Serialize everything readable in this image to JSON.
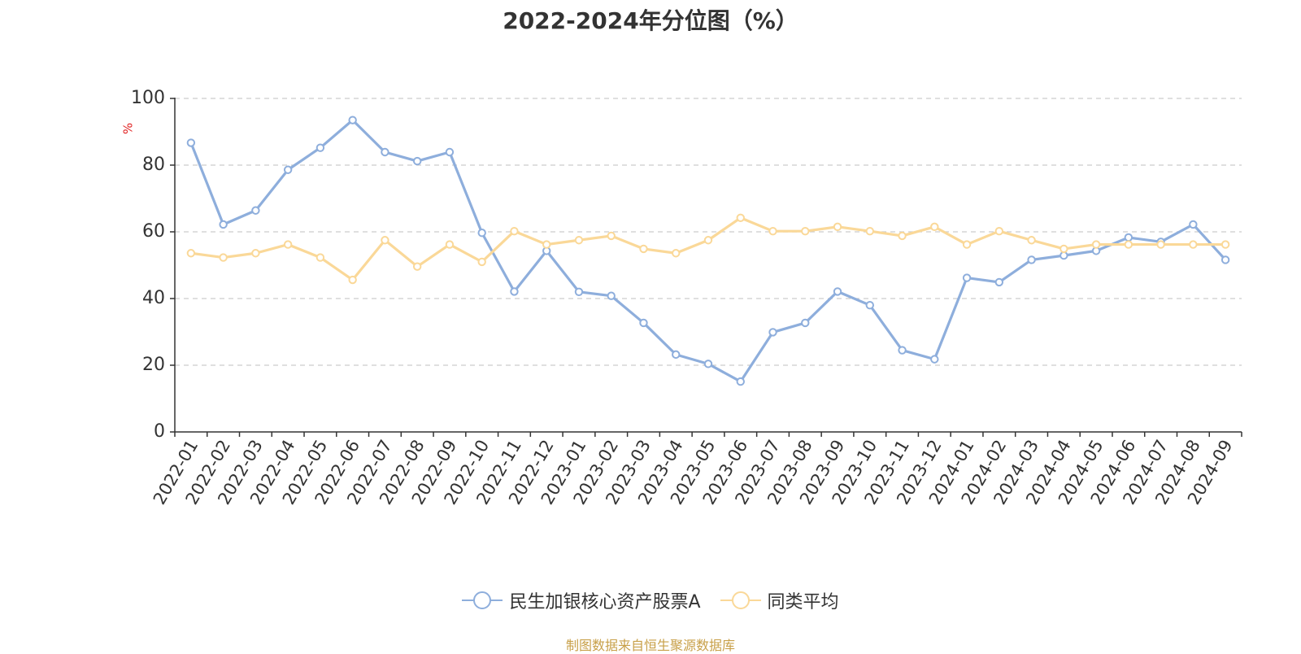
{
  "chart_data": {
    "type": "line",
    "title": "2022-2024年分位图（%）",
    "ylabel": "%",
    "xlabel": "",
    "ylim": [
      0,
      100
    ],
    "yticks": [
      0,
      20,
      40,
      60,
      80,
      100
    ],
    "grid": true,
    "legend_position": "bottom-center",
    "categories": [
      "2022-01",
      "2022-02",
      "2022-03",
      "2022-04",
      "2022-05",
      "2022-06",
      "2022-07",
      "2022-08",
      "2022-09",
      "2022-10",
      "2022-11",
      "2022-12",
      "2023-01",
      "2023-02",
      "2023-03",
      "2023-04",
      "2023-05",
      "2023-06",
      "2023-07",
      "2023-08",
      "2023-09",
      "2023-10",
      "2023-11",
      "2023-12",
      "2024-01",
      "2024-02",
      "2024-03",
      "2024-04",
      "2024-05",
      "2024-06",
      "2024-07",
      "2024-08",
      "2024-09"
    ],
    "series": [
      {
        "name": "民生加银核心资产股票A",
        "color": "#8eaedc",
        "values": [
          86.7,
          62.2,
          66.4,
          78.6,
          85.2,
          93.5,
          83.9,
          81.2,
          83.9,
          59.7,
          42.1,
          54.3,
          42.0,
          40.8,
          32.7,
          23.2,
          20.4,
          15.1,
          29.9,
          32.7,
          42.1,
          38.0,
          24.5,
          21.8,
          46.2,
          44.9,
          51.6,
          52.9,
          54.3,
          58.3,
          57.0,
          62.2,
          51.6
        ]
      },
      {
        "name": "同类平均",
        "color": "#fad898",
        "values": [
          53.6,
          52.3,
          53.6,
          56.2,
          52.3,
          45.6,
          57.5,
          49.6,
          56.2,
          51.0,
          60.2,
          56.2,
          57.5,
          58.8,
          54.9,
          53.6,
          57.5,
          64.2,
          60.2,
          60.2,
          61.5,
          60.2,
          58.8,
          61.5,
          56.2,
          60.2,
          57.5,
          54.9,
          56.2,
          56.2,
          56.2,
          56.2,
          56.2
        ]
      }
    ]
  },
  "footer": {
    "source": "制图数据来自恒生聚源数据库"
  }
}
